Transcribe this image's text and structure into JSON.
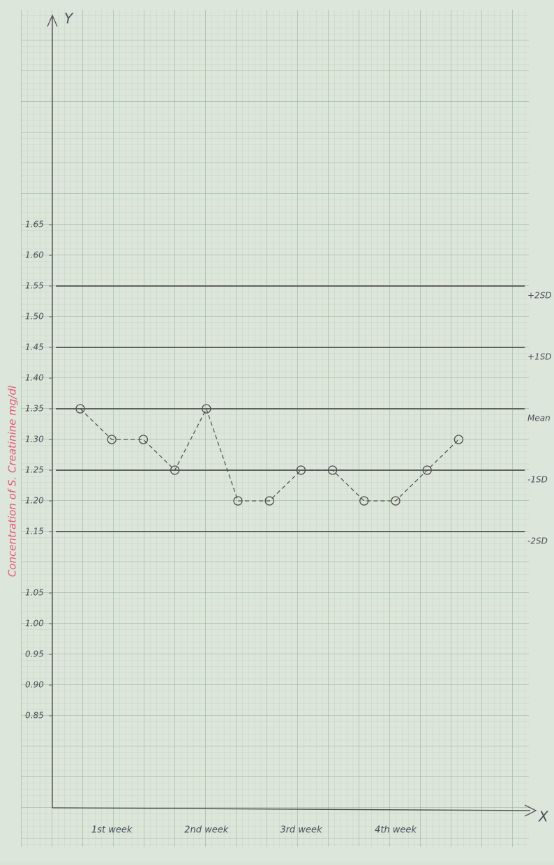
{
  "chart_data": {
    "type": "line",
    "y_label": "Concentration of S. Creatinine mg/dl",
    "x_axis_letter": "X",
    "y_axis_letter": "Y",
    "categories": [
      null,
      "1st week",
      null,
      null,
      "2nd week",
      null,
      null,
      "3rd week",
      null,
      null,
      "4th week",
      null,
      null
    ],
    "series": [
      {
        "color": "#4d4d4d",
        "values": [
          1.35,
          1.3,
          1.3,
          1.25,
          1.35,
          1.2,
          1.2,
          1.25,
          1.25,
          1.2,
          1.2,
          1.25,
          1.3
        ]
      }
    ],
    "ylim": [
      0.7,
      2.0
    ],
    "yticks": [
      {
        "value": 1.65,
        "label": "1.65"
      },
      {
        "value": 1.6,
        "label": "1.60"
      },
      {
        "value": 1.55,
        "label": "1.55"
      },
      {
        "value": 1.5,
        "label": "1.50"
      },
      {
        "value": 1.45,
        "label": "1.45"
      },
      {
        "value": 1.4,
        "label": "1.40"
      },
      {
        "value": 1.35,
        "label": "1.35"
      },
      {
        "value": 1.3,
        "label": "1.30"
      },
      {
        "value": 1.25,
        "label": "1.25"
      },
      {
        "value": 1.2,
        "label": "1.20"
      },
      {
        "value": 1.15,
        "label": "1.15"
      },
      {
        "value": 1.05,
        "label": "1.05"
      },
      {
        "value": 1.0,
        "label": "1.00"
      },
      {
        "value": 0.95,
        "label": "0.95"
      },
      {
        "value": 0.9,
        "label": "0.90"
      },
      {
        "value": 0.85,
        "label": "0.85"
      }
    ],
    "reference_lines": [
      {
        "value": 1.55,
        "label": "+2SD"
      },
      {
        "value": 1.45,
        "label": "+1SD"
      },
      {
        "value": 1.35,
        "label": "Mean"
      },
      {
        "value": 1.25,
        "label": "-1SD"
      },
      {
        "value": 1.15,
        "label": "-2SD"
      }
    ],
    "reference_color": "#5f6360",
    "y_label_color": "#e25a78",
    "grid": true
  }
}
